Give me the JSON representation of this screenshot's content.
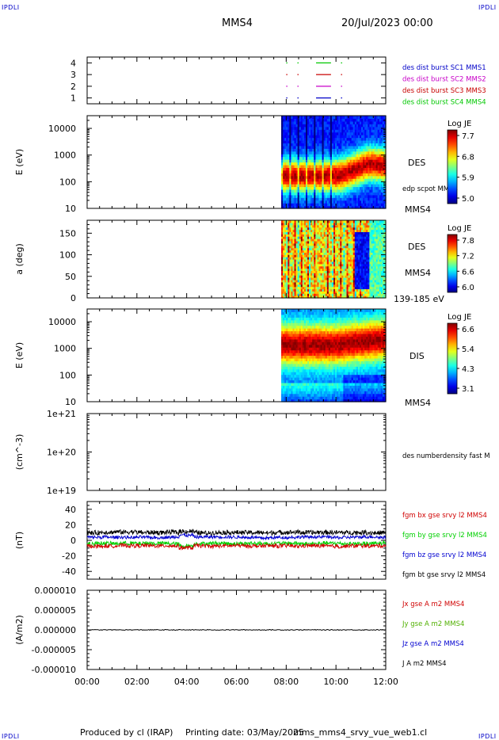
{
  "header": {
    "corner_label": "IPDLI",
    "spacecraft": "MMS4",
    "datetime": "20/Jul/2023 00:00"
  },
  "footer": {
    "produced_by": "Produced by cl (IRAP)",
    "printing_date": "Printing date: 03/May/2025",
    "filename": "mms_mms4_srvy_vue_web1.cl"
  },
  "colors": {
    "mms1": "#0000c8",
    "mms2": "#c800c8",
    "mms3": "#c80000",
    "mms4": "#00c800",
    "bx": "#d00000",
    "by": "#00d000",
    "bz": "#0000d0",
    "bt": "#000000"
  },
  "chart_data": [
    {
      "type": "line",
      "panel": "burst-availability",
      "ylim": [
        0.5,
        4.5
      ],
      "ytick_labels": [
        "4",
        "3",
        "2",
        "1"
      ],
      "legend": [
        {
          "label": "des dist burst SC1 MMS1",
          "color": "#0000c8"
        },
        {
          "label": "des dist burst SC2 MMS2",
          "color": "#c800c8"
        },
        {
          "label": "des dist burst SC3 MMS3",
          "color": "#c80000"
        },
        {
          "label": "des dist burst SC4 MMS4",
          "color": "#00c800"
        }
      ],
      "segments_hours": [
        [
          8.0,
          8.05
        ],
        [
          8.45,
          8.5
        ],
        [
          9.2,
          9.8
        ],
        [
          10.2,
          10.25
        ]
      ]
    },
    {
      "type": "heatmap",
      "panel": "des-energy",
      "ylabel": "E (eV)",
      "yscale": "log",
      "ylim": [
        10,
        30000
      ],
      "ytick_labels": [
        "10000",
        "1000",
        "100",
        "10"
      ],
      "data_start_hour": 7.8,
      "right_labels": [
        "DES",
        "edp scpot MMS4",
        "MMS4"
      ],
      "colorbar": {
        "title": "Log JE",
        "ticks": [
          "7.7",
          "6.8",
          "5.9",
          "5.0"
        ]
      }
    },
    {
      "type": "heatmap",
      "panel": "des-pitch-angle",
      "ylabel": "a (deg)",
      "ylim": [
        0,
        180
      ],
      "ytick_labels": [
        "150",
        "100",
        "50",
        "0"
      ],
      "data_start_hour": 7.8,
      "right_labels": [
        "DES",
        "MMS4",
        "139-185 eV"
      ],
      "colorbar": {
        "title": "Log JE",
        "ticks": [
          "7.8",
          "7.2",
          "6.6",
          "6.0"
        ]
      }
    },
    {
      "type": "heatmap",
      "panel": "dis-energy",
      "ylabel": "E (eV)",
      "yscale": "log",
      "ylim": [
        10,
        30000
      ],
      "ytick_labels": [
        "10000",
        "1000",
        "100",
        "10"
      ],
      "data_start_hour": 7.8,
      "right_labels": [
        "DIS",
        "MMS4"
      ],
      "colorbar": {
        "title": "Log JE",
        "ticks": [
          "6.6",
          "5.4",
          "4.3",
          "3.1"
        ]
      }
    },
    {
      "type": "line",
      "panel": "density",
      "ylabel": "(cm^-3)",
      "yscale": "log",
      "ylim": [
        1e+19,
        1e+21
      ],
      "ytick_labels": [
        "1e+21",
        "1e+20",
        "1e+19"
      ],
      "legend": [
        {
          "label": "des numberdensity fast M",
          "color": "#000000"
        }
      ]
    },
    {
      "type": "line",
      "panel": "magnetic-field",
      "ylabel": "(nT)",
      "ylim": [
        -50,
        50
      ],
      "ytick_labels": [
        "40",
        "20",
        "0",
        "-20",
        "-40"
      ],
      "legend": [
        {
          "label": "fgm bx gse srvy l2 MMS4",
          "color": "#d00000"
        },
        {
          "label": "fgm by gse srvy l2 MMS4",
          "color": "#00d000"
        },
        {
          "label": "fgm bz gse srvy l2 MMS4",
          "color": "#0000d0"
        },
        {
          "label": "fgm bt gse srvy l2 MMS4",
          "color": "#000000"
        }
      ],
      "series": [
        {
          "name": "fgm bt gse srvy l2 MMS4",
          "mean": 10,
          "noise": 3
        },
        {
          "name": "fgm bz gse srvy l2 MMS4",
          "mean": 4,
          "noise": 2
        },
        {
          "name": "fgm by gse srvy l2 MMS4",
          "mean": -4,
          "noise": 2.5
        },
        {
          "name": "fgm bx gse srvy l2 MMS4",
          "mean": -7,
          "noise": 2.5
        }
      ]
    },
    {
      "type": "line",
      "panel": "current-density",
      "ylabel": "(A/m2)",
      "ylim": [
        -1e-05,
        1e-05
      ],
      "ytick_labels": [
        "0.000010",
        "0.000005",
        "0.000000",
        "-0.000005",
        "-0.000010"
      ],
      "xtick_labels": [
        "00:00",
        "02:00",
        "04:00",
        "06:00",
        "08:00",
        "10:00",
        "12:00"
      ],
      "xlim_hours": [
        0,
        12
      ],
      "legend": [
        {
          "label": "Jx gse A m2 MMS4",
          "color": "#d00000"
        },
        {
          "label": "Jy gse A m2 MMS4",
          "color": "#50b000"
        },
        {
          "label": "Jz gse A m2 MMS4",
          "color": "#0000d0"
        },
        {
          "label": "J A m2 MMS4",
          "color": "#000000"
        }
      ]
    }
  ]
}
